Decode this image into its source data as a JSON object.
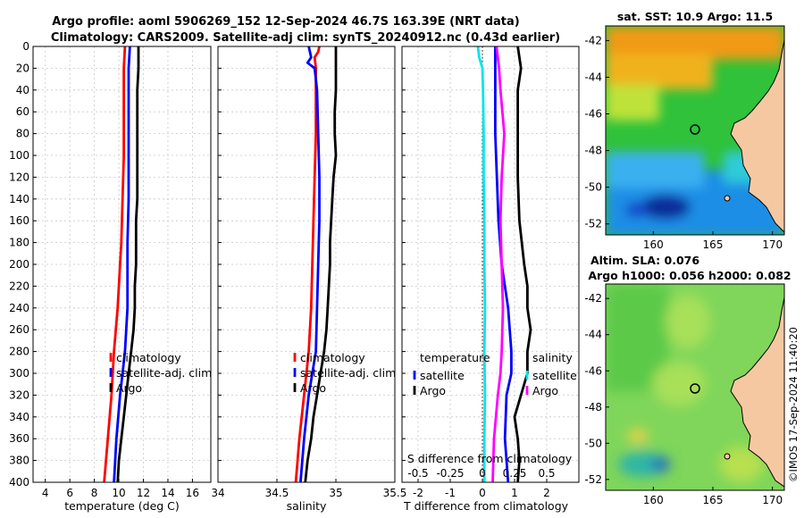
{
  "header": {
    "title_line1": "Argo profile: aoml 5906269_152 12-Sep-2024 46.7S 163.39E (NRT data)",
    "title_line2": "Climatology: CARS2009. Satellite-adj clim: synTS_20240912.nc (0.43d earlier)"
  },
  "watermark": "©IMOS 17-Sep-2024 11:40:20",
  "colors": {
    "red": "#ff0000",
    "blue": "#0000ff",
    "black": "#000000",
    "cyan": "#00e5ee",
    "magenta": "#ff00ff",
    "land": "#f5c8a2"
  },
  "chart_data": [
    {
      "id": "temperature",
      "type": "line",
      "xlabel": "temperature (deg C)",
      "xlim": [
        3,
        17.5
      ],
      "xticks": [
        4,
        6,
        8,
        10,
        12,
        14,
        16
      ],
      "ylim": [
        0,
        400
      ],
      "yticks": [
        0,
        20,
        40,
        60,
        80,
        100,
        120,
        140,
        160,
        180,
        200,
        220,
        240,
        260,
        280,
        300,
        320,
        340,
        360,
        380,
        400
      ],
      "series": [
        {
          "name": "climatology",
          "color": "#ff0000",
          "depth": [
            0,
            20,
            40,
            60,
            80,
            100,
            140,
            180,
            200,
            240,
            280,
            320,
            360,
            400
          ],
          "values": [
            10.5,
            10.4,
            10.4,
            10.4,
            10.4,
            10.4,
            10.3,
            10.2,
            10.1,
            9.9,
            9.6,
            9.4,
            9.1,
            8.8
          ]
        },
        {
          "name": "satellite-adj. clim",
          "color": "#0000ff",
          "depth": [
            0,
            20,
            40,
            60,
            80,
            100,
            140,
            180,
            200,
            240,
            280,
            300,
            320,
            360,
            400
          ],
          "values": [
            10.9,
            10.8,
            10.8,
            10.8,
            10.8,
            10.8,
            10.8,
            10.7,
            10.7,
            10.7,
            10.5,
            10.3,
            10.1,
            9.8,
            9.6
          ]
        },
        {
          "name": "Argo",
          "color": "#000000",
          "depth": [
            0,
            20,
            40,
            60,
            80,
            100,
            120,
            140,
            160,
            180,
            200,
            220,
            240,
            260,
            280,
            300,
            320,
            340,
            360,
            380,
            400
          ],
          "values": [
            11.6,
            11.6,
            11.5,
            11.5,
            11.5,
            11.5,
            11.5,
            11.5,
            11.4,
            11.4,
            11.4,
            11.3,
            11.3,
            11.2,
            11.0,
            10.8,
            10.6,
            10.4,
            10.2,
            10.0,
            9.9
          ]
        }
      ],
      "legend": [
        "climatology",
        "satellite-adj. clim",
        "Argo"
      ]
    },
    {
      "id": "salinity",
      "type": "line",
      "xlabel": "salinity",
      "xlim": [
        34,
        35.5
      ],
      "xticks": [
        34,
        34.5,
        35,
        35.5
      ],
      "ylim": [
        0,
        400
      ],
      "series": [
        {
          "name": "climatology",
          "color": "#ff0000",
          "depth": [
            0,
            5,
            10,
            20,
            40,
            80,
            120,
            160,
            200,
            240,
            280,
            300,
            320,
            360,
            400
          ],
          "values": [
            34.86,
            34.85,
            34.82,
            34.83,
            34.83,
            34.83,
            34.82,
            34.81,
            34.8,
            34.79,
            34.77,
            34.75,
            34.73,
            34.69,
            34.66
          ]
        },
        {
          "name": "satellite-adj. clim",
          "color": "#0000ff",
          "depth": [
            0,
            10,
            15,
            20,
            40,
            80,
            120,
            160,
            200,
            240,
            280,
            300,
            320,
            360,
            400
          ],
          "values": [
            34.77,
            34.79,
            34.76,
            34.82,
            34.84,
            34.85,
            34.86,
            34.86,
            34.85,
            34.84,
            34.83,
            34.8,
            34.77,
            34.73,
            34.7
          ]
        },
        {
          "name": "Argo",
          "color": "#000000",
          "depth": [
            0,
            20,
            40,
            60,
            80,
            100,
            120,
            140,
            160,
            180,
            200,
            220,
            240,
            260,
            280,
            300,
            320,
            340,
            360,
            380,
            400
          ],
          "values": [
            35.0,
            35.0,
            35.0,
            34.99,
            34.99,
            35.0,
            34.98,
            34.97,
            34.96,
            34.95,
            34.95,
            34.94,
            34.93,
            34.92,
            34.9,
            34.87,
            34.84,
            34.81,
            34.79,
            34.76,
            34.74
          ]
        }
      ],
      "legend": [
        "climatology",
        "satellite-adj. clim",
        "Argo"
      ]
    },
    {
      "id": "differences",
      "type": "line",
      "xlabel": "T difference from climatology",
      "xlim": [
        -2.5,
        3
      ],
      "xticks": [
        -2,
        -1,
        0,
        1,
        2
      ],
      "xlabel_top": "S difference from climatology",
      "xticks_top": [
        -0.5,
        -0.25,
        0,
        0.25,
        0.5
      ],
      "xlim_top": [
        -0.625,
        0.75
      ],
      "ylim": [
        0,
        400
      ],
      "series": [
        {
          "name": "temperature satellite",
          "color": "#0000ff",
          "depth": [
            0,
            20,
            40,
            80,
            120,
            160,
            200,
            220,
            240,
            280,
            300,
            320,
            360,
            400
          ],
          "values": [
            0.4,
            0.4,
            0.4,
            0.4,
            0.45,
            0.5,
            0.6,
            0.7,
            0.8,
            0.9,
            0.9,
            0.75,
            0.7,
            0.8
          ]
        },
        {
          "name": "temperature Argo",
          "color": "#000000",
          "depth": [
            0,
            20,
            40,
            80,
            120,
            160,
            200,
            220,
            240,
            260,
            280,
            300,
            320,
            340,
            360,
            380,
            400
          ],
          "values": [
            1.1,
            1.2,
            1.1,
            1.1,
            1.1,
            1.15,
            1.3,
            1.4,
            1.4,
            1.5,
            1.4,
            1.4,
            1.2,
            1.0,
            1.1,
            1.15,
            1.1
          ]
        },
        {
          "name": "salinity satellite",
          "color": "#00e5ee",
          "depth": [
            0,
            10,
            20,
            40,
            80,
            120,
            160,
            200,
            240,
            280,
            320,
            360,
            400
          ],
          "values": [
            -0.035,
            -0.025,
            0,
            0.005,
            0.01,
            0.01,
            0.015,
            0.015,
            0.02,
            0.015,
            0.02,
            0.015,
            0.015
          ]
        },
        {
          "name": "salinity Argo",
          "color": "#ff00ff",
          "depth": [
            0,
            20,
            40,
            80,
            120,
            160,
            200,
            240,
            280,
            300,
            320,
            360,
            400
          ],
          "values": [
            0.11,
            0.13,
            0.14,
            0.17,
            0.15,
            0.14,
            0.15,
            0.16,
            0.15,
            0.14,
            0.12,
            0.09,
            0.08
          ]
        }
      ],
      "legend": {
        "temperature_heading": "temperature",
        "salinity_heading": "salinity",
        "labels": [
          "satellite",
          "Argo",
          "satellite",
          "Argo"
        ]
      }
    }
  ],
  "maps": {
    "sst": {
      "title": "sat. SST: 10.9 Argo: 11.5",
      "lat_ticks": [
        "-42",
        "-44",
        "-46",
        "-48",
        "-50",
        "-52"
      ],
      "lon_ticks": [
        "160",
        "165",
        "170"
      ]
    },
    "sla": {
      "title_line1": "Altim. SLA: 0.076",
      "title_line2": "Argo h1000: 0.056 h2000: 0.082",
      "lat_ticks": [
        "-42",
        "-44",
        "-46",
        "-48",
        "-50",
        "-52"
      ],
      "lon_ticks": [
        "160",
        "165",
        "170"
      ]
    }
  }
}
